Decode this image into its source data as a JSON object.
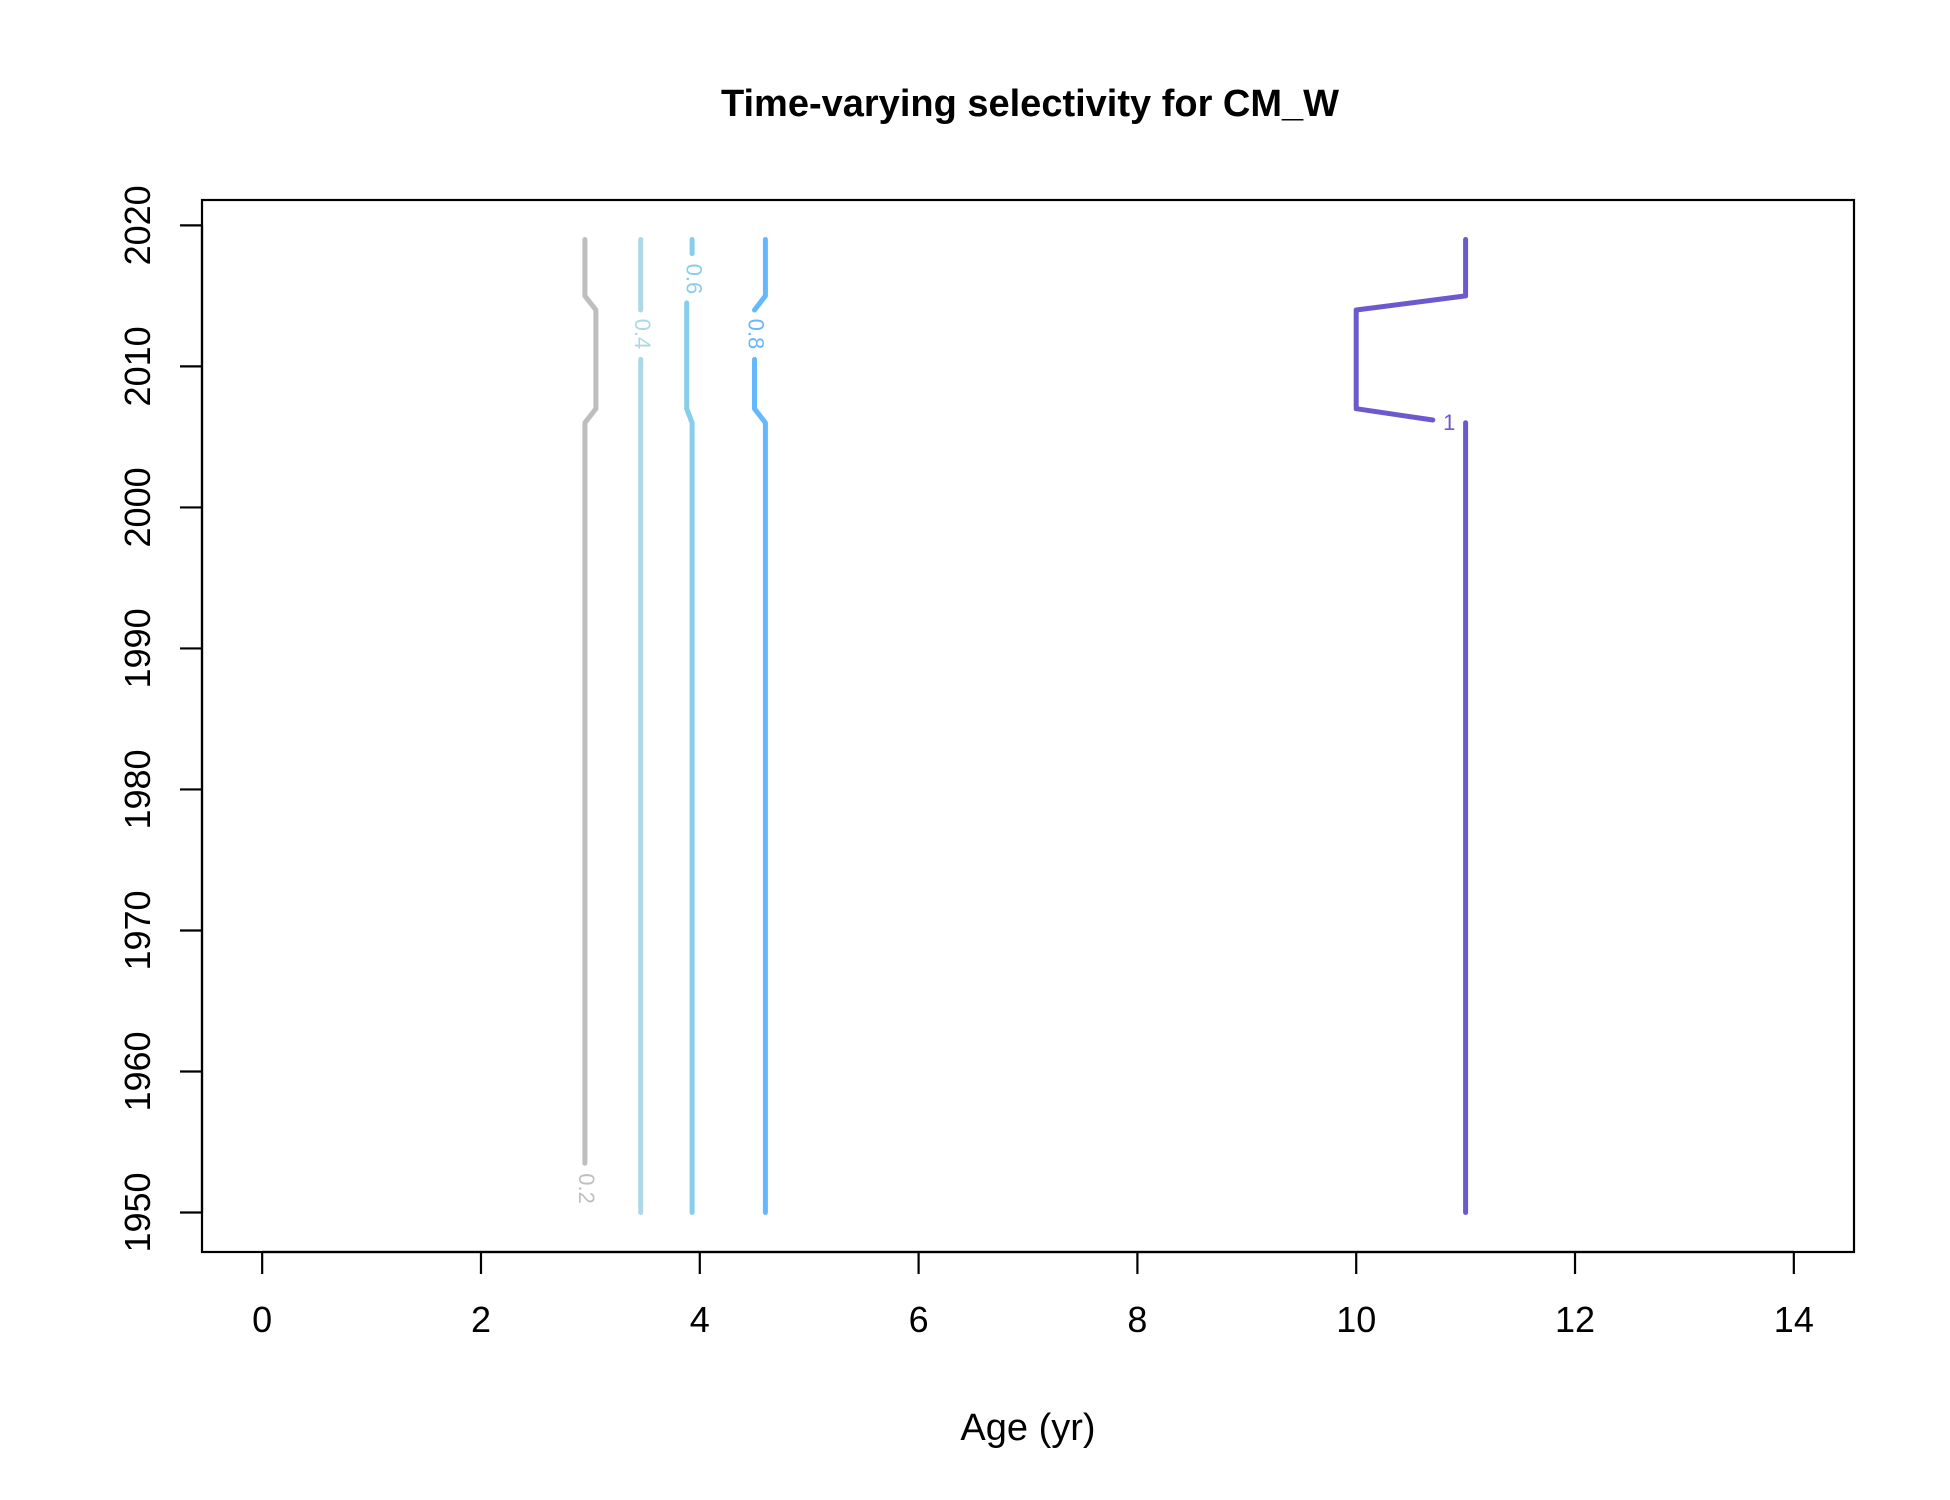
{
  "chart_data": {
    "type": "contour",
    "title": "Time-varying selectivity for CM_W",
    "xlabel": "Age (yr)",
    "ylabel": "",
    "xlim": [
      -0.55,
      14.55
    ],
    "ylim": [
      1947.2,
      2021.8
    ],
    "x_ticks": [
      0,
      2,
      4,
      6,
      8,
      10,
      12,
      14
    ],
    "y_ticks": [
      1950,
      1960,
      1970,
      1980,
      1990,
      2000,
      2010,
      2020
    ],
    "grid": false,
    "legend": "none",
    "contours": [
      {
        "level": 0.2,
        "label": "0.2",
        "color": "#bebebe",
        "label_at": [
          2.95,
          1951.7
        ],
        "segments": [
          [
            [
              2.95,
              2019
            ],
            [
              2.95,
              2015
            ],
            [
              3.05,
              2014
            ],
            [
              3.05,
              2007
            ],
            [
              2.95,
              2006
            ],
            [
              2.95,
              1953.5
            ]
          ]
        ]
      },
      {
        "level": 0.4,
        "label": "0.4",
        "color": "#add8e6",
        "label_at": [
          3.46,
          2012.3
        ],
        "segments": [
          [
            [
              3.46,
              2019
            ],
            [
              3.46,
              2014
            ]
          ],
          [
            [
              3.46,
              2010.5
            ],
            [
              3.46,
              1950
            ]
          ]
        ]
      },
      {
        "level": 0.6,
        "label": "0.6",
        "color": "#87ceeb",
        "label_at": [
          3.93,
          2016.2
        ],
        "segments": [
          [
            [
              3.93,
              2019
            ],
            [
              3.93,
              2018
            ]
          ],
          [
            [
              3.88,
              2014.5
            ],
            [
              3.88,
              2007
            ],
            [
              3.93,
              2006
            ],
            [
              3.93,
              1950
            ]
          ]
        ]
      },
      {
        "level": 0.8,
        "label": "0.8",
        "color": "#63b8ff",
        "label_at": [
          4.5,
          2012.3
        ],
        "segments": [
          [
            [
              4.6,
              2019
            ],
            [
              4.6,
              2015
            ],
            [
              4.5,
              2014
            ]
          ],
          [
            [
              4.5,
              2010.5
            ],
            [
              4.5,
              2007
            ],
            [
              4.6,
              2006
            ],
            [
              4.6,
              1950
            ]
          ]
        ]
      },
      {
        "level": 1,
        "label": "1",
        "color": "#6a5acd",
        "label_at": [
          10.85,
          2005.9
        ],
        "segments": [
          [
            [
              11,
              2019
            ],
            [
              11,
              2015
            ],
            [
              10,
              2014
            ],
            [
              10,
              2007
            ],
            [
              10.7,
              2006.2
            ]
          ],
          [
            [
              11,
              2006
            ],
            [
              11,
              1950
            ]
          ]
        ]
      }
    ]
  }
}
